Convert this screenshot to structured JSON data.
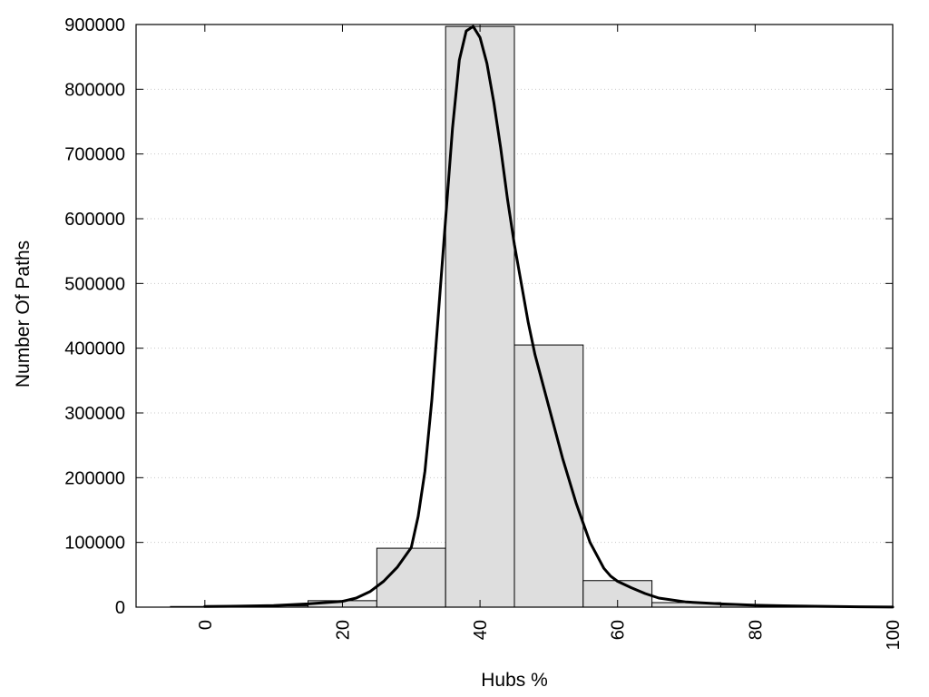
{
  "chart_data": {
    "type": "bar",
    "xlabel": "Hubs %",
    "ylabel": "Number Of Paths",
    "xlim": [
      -10,
      100
    ],
    "ylim": [
      0,
      900000
    ],
    "grid": true,
    "grid_style": "dotted horizontal",
    "xticks": [
      "0",
      "20",
      "40",
      "60",
      "80",
      "100"
    ],
    "yticks": [
      "0",
      "100000",
      "200000",
      "300000",
      "400000",
      "500000",
      "600000",
      "700000",
      "800000",
      "900000"
    ],
    "bin_width": 10,
    "bars": [
      {
        "x": 0,
        "value": 1000
      },
      {
        "x": 10,
        "value": 2000
      },
      {
        "x": 20,
        "value": 10000
      },
      {
        "x": 30,
        "value": 91000
      },
      {
        "x": 40,
        "value": 897000
      },
      {
        "x": 50,
        "value": 405000
      },
      {
        "x": 60,
        "value": 41000
      },
      {
        "x": 70,
        "value": 7000
      },
      {
        "x": 80,
        "value": 3000
      },
      {
        "x": 90,
        "value": 500
      }
    ],
    "curve": {
      "x": [
        0,
        5,
        10,
        15,
        20,
        22,
        24,
        26,
        28,
        30,
        31,
        32,
        33,
        34,
        35,
        36,
        37,
        38,
        39,
        40,
        41,
        42,
        43,
        44,
        45,
        46,
        47,
        48,
        50,
        52,
        54,
        56,
        57,
        58,
        59,
        60,
        62,
        64,
        66,
        70,
        75,
        80,
        85,
        90,
        95,
        100
      ],
      "y": [
        1000,
        1500,
        2500,
        5000,
        9000,
        14000,
        24000,
        40000,
        62000,
        92000,
        140000,
        210000,
        320000,
        460000,
        600000,
        740000,
        845000,
        890000,
        897000,
        880000,
        840000,
        780000,
        710000,
        630000,
        560000,
        500000,
        440000,
        390000,
        310000,
        230000,
        160000,
        100000,
        80000,
        60000,
        48000,
        40000,
        30000,
        21000,
        14000,
        8000,
        5000,
        3000,
        2000,
        1200,
        600,
        200
      ]
    },
    "colors": {
      "bar_fill": "#dedede",
      "bar_stroke": "#000000",
      "curve": "#000000",
      "grid": "#c8c8c8"
    }
  }
}
